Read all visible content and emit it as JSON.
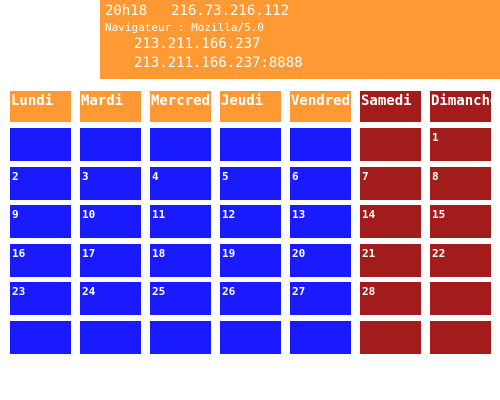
{
  "info": {
    "time": "20h18",
    "ip": "216.73.216.112",
    "browser": "Navigateur : Mozilla/5.0",
    "proxy_ip": "213.211.166.237",
    "proxy_address": "213.211.166.237:8888"
  },
  "colors": {
    "info_bg": "#ff9933",
    "weekday_header": "#ff9933",
    "weekend_header": "#a31c1c",
    "weekday_cell": "#1a1aff",
    "weekend_cell": "#a31c1c",
    "text": "#ffffff"
  },
  "calendar": {
    "days": [
      "Lundi",
      "Mardi",
      "Mercredi",
      "Jeudi",
      "Vendredi",
      "Samedi",
      "Dimanche"
    ],
    "weeks": [
      [
        "",
        "",
        "",
        "",
        "",
        "",
        "1"
      ],
      [
        "2",
        "3",
        "4",
        "5",
        "6",
        "7",
        "8"
      ],
      [
        "9",
        "10",
        "11",
        "12",
        "13",
        "14",
        "15"
      ],
      [
        "16",
        "17",
        "18",
        "19",
        "20",
        "21",
        "22"
      ],
      [
        "23",
        "24",
        "25",
        "26",
        "27",
        "28",
        ""
      ],
      [
        "",
        "",
        "",
        "",
        "",
        "",
        ""
      ]
    ]
  }
}
